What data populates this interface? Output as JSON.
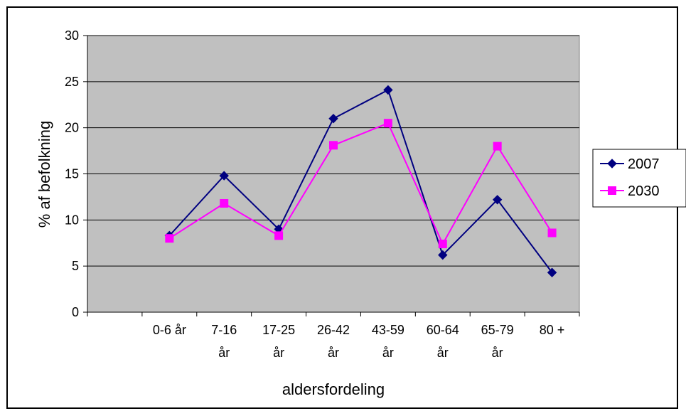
{
  "chart_data": {
    "type": "line",
    "categories": [
      "0-6 år",
      "7-16 år",
      "17-25 år",
      "26-42 år",
      "43-59 år",
      "60-64 år",
      "65-79 år",
      "80 +"
    ],
    "category_lines": [
      [
        "0-6 år"
      ],
      [
        "7-16",
        "år"
      ],
      [
        "17-25",
        "år"
      ],
      [
        "26-42",
        "år"
      ],
      [
        "43-59",
        "år"
      ],
      [
        "60-64",
        "år"
      ],
      [
        "65-79",
        "år"
      ],
      [
        "80 +"
      ]
    ],
    "series": [
      {
        "name": "2007",
        "color": "#000080",
        "marker": "diamond",
        "values": [
          8.3,
          14.8,
          9.0,
          21.0,
          24.1,
          6.2,
          12.2,
          4.3
        ]
      },
      {
        "name": "2030",
        "color": "#FF00FF",
        "marker": "square",
        "values": [
          8.0,
          11.8,
          8.3,
          18.1,
          20.5,
          7.4,
          18.0,
          8.6
        ]
      }
    ],
    "xlabel": "aldersfordeling",
    "ylabel": "% af befolkning",
    "ylim": [
      0,
      30
    ],
    "yticks": [
      "0",
      "5",
      "10",
      "15",
      "20",
      "25",
      "30"
    ],
    "grid": true,
    "plot_background": "#C0C0C0",
    "legend_position": "right"
  }
}
